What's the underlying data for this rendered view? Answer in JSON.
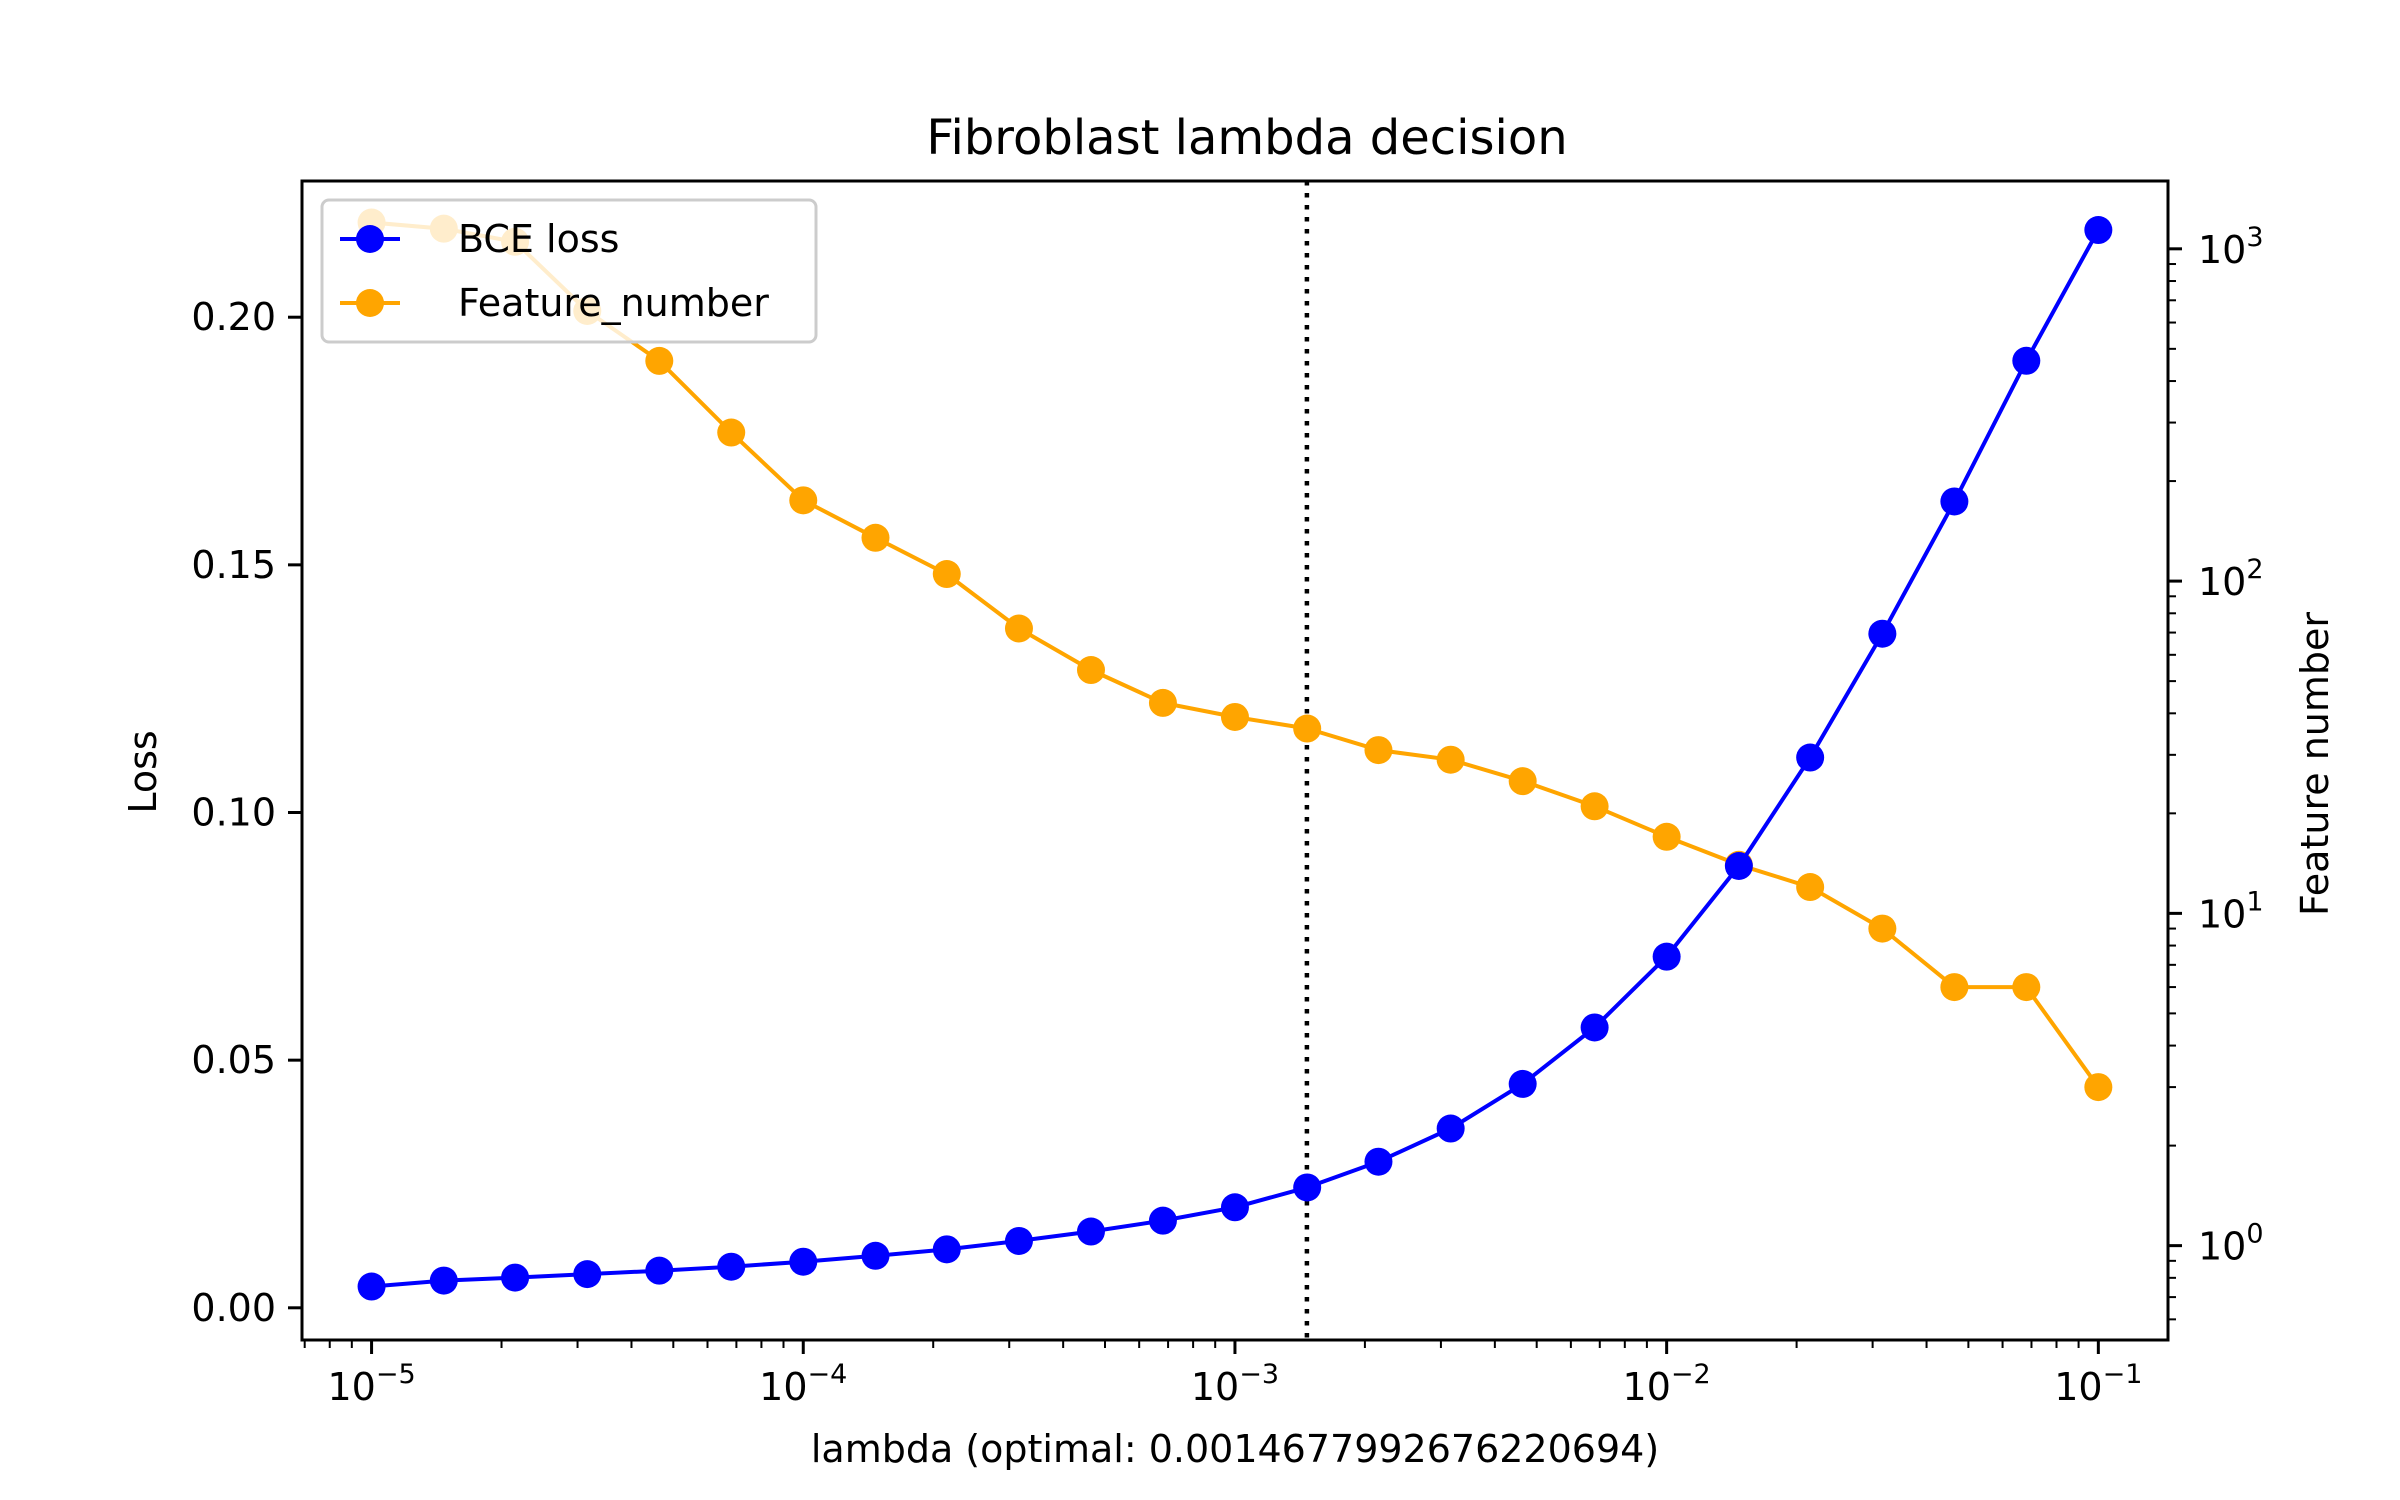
{
  "chart_data": {
    "type": "line",
    "title": "Fibroblast lambda decision",
    "xlabel": "lambda (optimal: 0.0014677992676220694)",
    "ylabel": "Loss",
    "y2label": "Feature number",
    "xscale": "log",
    "y2scale": "log",
    "xlim": [
      6.9e-06,
      0.145
    ],
    "ylim": [
      -0.0065,
      0.2275
    ],
    "y2lim": [
      0.52,
      1600
    ],
    "xticks": [
      {
        "value": 1e-05,
        "base": "10",
        "exp": "−5"
      },
      {
        "value": 0.0001,
        "base": "10",
        "exp": "−4"
      },
      {
        "value": 0.001,
        "base": "10",
        "exp": "−3"
      },
      {
        "value": 0.01,
        "base": "10",
        "exp": "−2"
      },
      {
        "value": 0.1,
        "base": "10",
        "exp": "−1"
      }
    ],
    "yticks": [
      {
        "value": 0.0,
        "label": "0.00"
      },
      {
        "value": 0.05,
        "label": "0.05"
      },
      {
        "value": 0.1,
        "label": "0.10"
      },
      {
        "value": 0.15,
        "label": "0.15"
      },
      {
        "value": 0.2,
        "label": "0.20"
      }
    ],
    "y2ticks": [
      {
        "value": 1,
        "base": "10",
        "exp": "0"
      },
      {
        "value": 10,
        "base": "10",
        "exp": "1"
      },
      {
        "value": 100,
        "base": "10",
        "exp": "2"
      },
      {
        "value": 1000,
        "base": "10",
        "exp": "3"
      }
    ],
    "optimal_lambda": 0.0014677992676220694,
    "grid": false,
    "legend_position": "upper-left",
    "x": [
      1e-05,
      1.47e-05,
      2.15e-05,
      3.16e-05,
      4.64e-05,
      6.81e-05,
      0.0001,
      0.000147,
      0.000215,
      0.000316,
      0.000464,
      0.000681,
      0.001,
      0.00147,
      0.00215,
      0.00316,
      0.00464,
      0.00681,
      0.01,
      0.0147,
      0.0215,
      0.0316,
      0.0464,
      0.0681,
      0.1
    ],
    "series": [
      {
        "name": "BCE loss",
        "axis": "left",
        "color": "#0000ff",
        "values": [
          0.0043,
          0.0055,
          0.0061,
          0.0068,
          0.0075,
          0.0083,
          0.0093,
          0.0105,
          0.0118,
          0.0135,
          0.0154,
          0.0176,
          0.0203,
          0.0243,
          0.0295,
          0.0362,
          0.0452,
          0.0566,
          0.0709,
          0.0892,
          0.1111,
          0.1361,
          0.1628,
          0.1912,
          0.2176
        ]
      },
      {
        "name": "Feature_number",
        "axis": "right",
        "color": "#ffa500",
        "values": [
          1200,
          1150,
          1050,
          650,
          460,
          280,
          175,
          135,
          105,
          72,
          54,
          43,
          39,
          36,
          31,
          29,
          25,
          21,
          17,
          14,
          12,
          9,
          6,
          6,
          3
        ]
      }
    ]
  }
}
